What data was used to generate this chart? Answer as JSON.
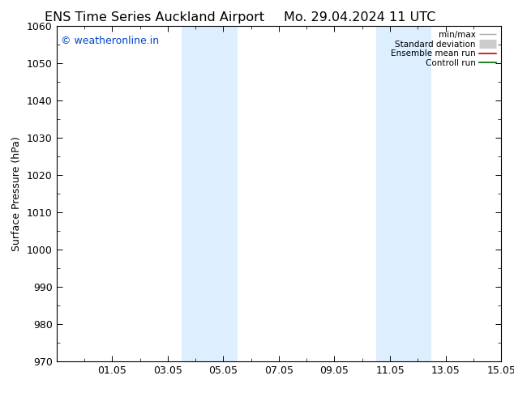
{
  "title_left": "ENS Time Series Auckland Airport",
  "title_right": "Mo. 29.04.2024 11 UTC",
  "ylabel": "Surface Pressure (hPa)",
  "ylim": [
    970,
    1060
  ],
  "yticks": [
    970,
    980,
    990,
    1000,
    1010,
    1020,
    1030,
    1040,
    1050,
    1060
  ],
  "total_days": 16,
  "x_tick_positions": [
    2,
    4,
    6,
    8,
    10,
    12,
    14,
    16
  ],
  "x_tick_labels": [
    "01.05",
    "03.05",
    "05.05",
    "07.05",
    "09.05",
    "11.05",
    "13.05",
    "15.05"
  ],
  "shaded_bands": [
    {
      "start_day": 4.5,
      "end_day": 6.5
    },
    {
      "start_day": 11.5,
      "end_day": 13.5
    }
  ],
  "shade_color": "#ddeeff",
  "watermark": "© weatheronline.in",
  "watermark_color": "#0044cc",
  "background_color": "#ffffff",
  "plot_bg_color": "#ffffff",
  "legend_items": [
    {
      "label": "min/max",
      "color": "#aaaaaa",
      "lw": 1.0,
      "type": "line"
    },
    {
      "label": "Standard deviation",
      "color": "#cccccc",
      "lw": 8,
      "type": "patch"
    },
    {
      "label": "Ensemble mean run",
      "color": "#cc0000",
      "lw": 1.2,
      "type": "line"
    },
    {
      "label": "Controll run",
      "color": "#006600",
      "lw": 1.2,
      "type": "line"
    }
  ],
  "title_fontsize": 11.5,
  "tick_label_fontsize": 9,
  "ylabel_fontsize": 9,
  "watermark_fontsize": 9
}
